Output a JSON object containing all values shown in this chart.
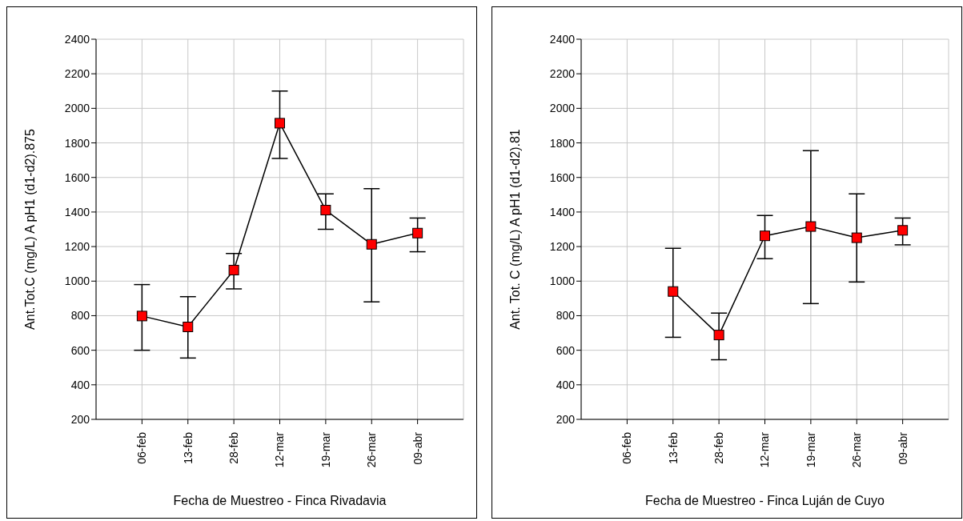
{
  "chart_data": [
    {
      "type": "line",
      "xlabel": "Fecha de Muestreo - Finca Rivadavia",
      "ylabel": "Ant.Tot.C (mg/L) A pH1 (d1-d2).875",
      "categories": [
        "06-feb",
        "13-feb",
        "28-feb",
        "12-mar",
        "19-mar",
        "26-mar",
        "09-abr"
      ],
      "series": [
        {
          "color": "#ff0000",
          "values": [
            798,
            735,
            1064,
            1914,
            1411,
            1213,
            1278
          ],
          "errors": [
            [
              600,
              980
            ],
            [
              555,
              910
            ],
            [
              955,
              1160
            ],
            [
              1710,
              2100
            ],
            [
              1300,
              1505
            ],
            [
              880,
              1535
            ],
            [
              1170,
              1365
            ]
          ]
        }
      ],
      "ylim": [
        200,
        2400
      ],
      "yticks": [
        200,
        400,
        600,
        800,
        1000,
        1200,
        1400,
        1600,
        1800,
        2000,
        2200,
        2400
      ],
      "grid": true,
      "marker": "square",
      "line_style": "solid"
    },
    {
      "type": "line",
      "xlabel": "Fecha de Muestreo - Finca Luján de Cuyo",
      "ylabel": "Ant. Tot. C (mg/L) A pH1 (d1-d2).81",
      "categories": [
        "06-feb",
        "13-feb",
        "28-feb",
        "12-mar",
        "19-mar",
        "26-mar",
        "09-abr"
      ],
      "series": [
        {
          "color": "#ff0000",
          "values": [
            null,
            940,
            688,
            1262,
            1316,
            1251,
            1294
          ],
          "errors": [
            null,
            [
              675,
              1190
            ],
            [
              545,
              815
            ],
            [
              1130,
              1380
            ],
            [
              870,
              1755
            ],
            [
              995,
              1505
            ],
            [
              1210,
              1365
            ]
          ]
        }
      ],
      "ylim": [
        200,
        2400
      ],
      "yticks": [
        200,
        400,
        600,
        800,
        1000,
        1200,
        1400,
        1600,
        1800,
        2000,
        2200,
        2400
      ],
      "grid": true,
      "marker": "square",
      "line_style": "solid"
    }
  ]
}
